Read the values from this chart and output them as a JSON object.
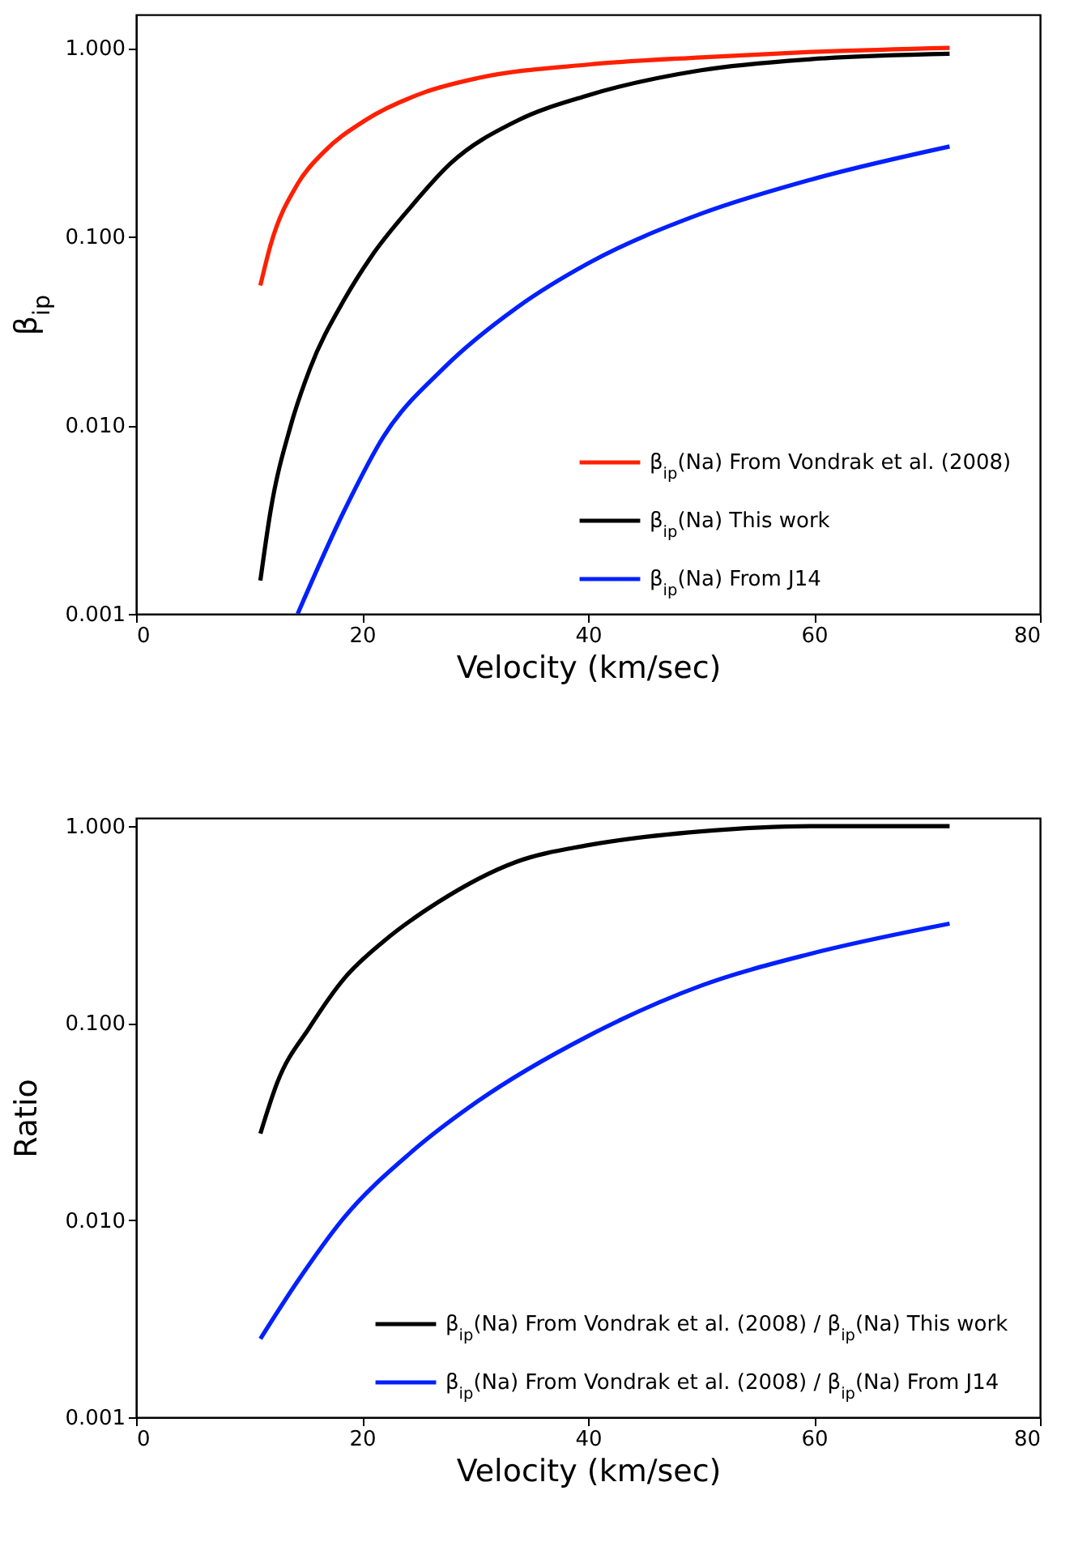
{
  "chart_data": [
    {
      "type": "line",
      "xlabel": "Velocity (km/sec)",
      "ylabel": "β$_{ip}$",
      "log": "y",
      "grid": false,
      "legend": "bottom right",
      "xlim": [
        0,
        80
      ],
      "xticks": [
        0,
        20,
        40,
        60,
        80
      ],
      "ylim": [
        0.001,
        1.5
      ],
      "yticks": [
        {
          "value": 0.001,
          "label": "0.001"
        },
        {
          "value": 0.01,
          "label": "0.010"
        },
        {
          "value": 0.1,
          "label": "0.100"
        },
        {
          "value": 1,
          "label": "1.000"
        }
      ],
      "series": [
        {
          "name": "β$_{ip}$(Na) From Vondrak et al. (2008)",
          "color": "#ff2000",
          "x": [
            11.0,
            11.9,
            14.3,
            16.6,
            20.2,
            25.5,
            30.2,
            40,
            50,
            59.7,
            72
          ],
          "values": [
            0.055,
            0.09,
            0.19,
            0.28,
            0.41,
            0.58,
            0.69,
            0.815,
            0.89,
            0.95,
            1.0
          ]
        },
        {
          "name": "β$_{ip}$(Na) This work",
          "color": "#000000",
          "x": [
            11.0,
            11.9,
            13.7,
            15.4,
            18.4,
            20.8,
            24.3,
            27.8,
            33.7,
            40,
            50,
            59.7,
            72
          ],
          "values": [
            0.0015,
            0.0035,
            0.01,
            0.02,
            0.046,
            0.078,
            0.143,
            0.243,
            0.41,
            0.56,
            0.76,
            0.87,
            0.93
          ]
        },
        {
          "name": "β$_{ip}$(Na) From J14",
          "color": "#0020ff",
          "x": [
            14.3,
            18.4,
            21.9,
            27.2,
            33.7,
            40,
            50,
            59.7,
            72
          ],
          "values": [
            0.001,
            0.0035,
            0.0087,
            0.02,
            0.042,
            0.072,
            0.132,
            0.2,
            0.3
          ]
        }
      ]
    },
    {
      "type": "line",
      "xlabel": "Velocity (km/sec)",
      "ylabel": "Ratio",
      "log": "y",
      "grid": false,
      "legend": "bottom right",
      "xlim": [
        0,
        80
      ],
      "xticks": [
        0,
        20,
        40,
        60,
        80
      ],
      "ylim": [
        0.001,
        1.1
      ],
      "yticks": [
        {
          "value": 0.001,
          "label": "0.001"
        },
        {
          "value": 0.01,
          "label": "0.010"
        },
        {
          "value": 0.1,
          "label": "0.100"
        },
        {
          "value": 1,
          "label": "1.000"
        }
      ],
      "series": [
        {
          "name": "β$_{ip}$(Na) From Vondrak et al. (2008) / β$_{ip}$(Na) This work",
          "color": "#000000",
          "x": [
            11.0,
            12.5,
            15.4,
            18.4,
            21.9,
            26.7,
            33.7,
            40,
            50,
            59.7,
            72
          ],
          "values": [
            0.0275,
            0.05,
            0.096,
            0.168,
            0.26,
            0.41,
            0.66,
            0.8,
            0.94,
            1.0,
            1.0
          ]
        },
        {
          "name": "β$_{ip}$(Na) From Vondrak et al. (2008) / β$_{ip}$(Na) From J14",
          "color": "#0020ff",
          "x": [
            11.0,
            14.3,
            18.4,
            24.3,
            30.2,
            40,
            50,
            59.7,
            72
          ],
          "values": [
            0.0025,
            0.0049,
            0.0103,
            0.022,
            0.04,
            0.086,
            0.155,
            0.225,
            0.32
          ]
        }
      ]
    }
  ]
}
